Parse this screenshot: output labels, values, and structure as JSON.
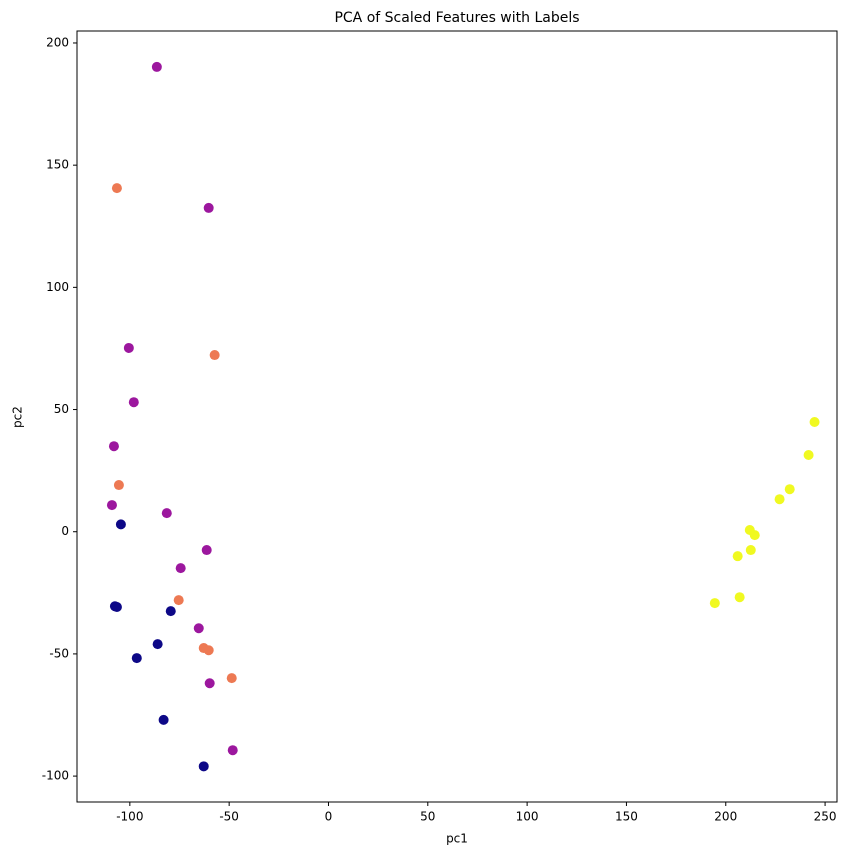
{
  "chart_data": {
    "type": "scatter",
    "title": "PCA of Scaled Features with Labels",
    "x_label": "pc1",
    "y_label": "pc2",
    "xlim": [
      -126.6,
      256
    ],
    "ylim": [
      -110.6,
      204.9
    ],
    "xticks": [
      -100,
      -50,
      0,
      50,
      100,
      150,
      200,
      250
    ],
    "yticks": [
      -100,
      -50,
      0,
      50,
      100,
      150,
      200
    ],
    "grid": false,
    "series": [
      {
        "color": "#0d0887",
        "x": [
          -104.5,
          -107.5,
          -106.5,
          -79.4,
          -86,
          -96.5,
          -83,
          -62.8
        ],
        "y": [
          3,
          -30.5,
          -30.8,
          -32.5,
          -46,
          -51.7,
          -77,
          -96
        ]
      },
      {
        "color": "#9c179e",
        "x": [
          -86.4,
          -60.3,
          -100.5,
          -98,
          -108,
          -109,
          -81.4,
          -61.3,
          -74.4,
          -65.3,
          -59.8,
          -48.2
        ],
        "y": [
          190.2,
          132.5,
          75.2,
          53,
          35,
          10.9,
          7.6,
          -7.5,
          -14.9,
          -39.5,
          -62,
          -89.4
        ]
      },
      {
        "color": "#ed7953",
        "x": [
          -106.5,
          -57.3,
          -105.5,
          -75.4,
          -62.8,
          -60.3,
          -48.7
        ],
        "y": [
          140.6,
          72.3,
          19.1,
          -28,
          -47.6,
          -48.5,
          -59.9
        ]
      },
      {
        "color": "#f0f921",
        "x": [
          244.7,
          241.7,
          232.2,
          227.1,
          212.1,
          214.6,
          206,
          212.6,
          194.5,
          207
        ],
        "y": [
          44.9,
          31.4,
          17.4,
          13.3,
          0.7,
          -1.4,
          -10,
          -7.5,
          -29.2,
          -26.8
        ]
      }
    ]
  }
}
